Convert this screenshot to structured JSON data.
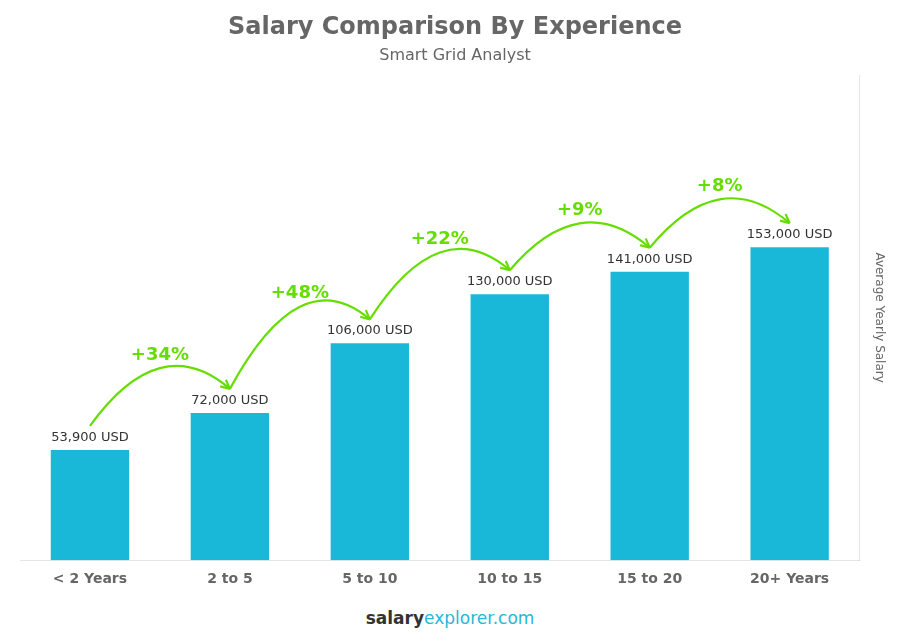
{
  "chart_data": {
    "type": "bar",
    "title": "Salary Comparison By Experience",
    "subtitle": "Smart Grid Analyst",
    "categories": [
      "< 2 Years",
      "2 to 5",
      "5 to 10",
      "10 to 15",
      "15 to 20",
      "20+ Years"
    ],
    "values": [
      53900,
      72000,
      106000,
      130000,
      141000,
      153000
    ],
    "value_labels": [
      "53,900 USD",
      "72,000 USD",
      "106,000 USD",
      "130,000 USD",
      "141,000 USD",
      "153,000 USD"
    ],
    "data_labels": true,
    "color": "#1ab8d8",
    "y_label": "Average Yearly Salary",
    "ylim": [
      0,
      237150
    ],
    "tick_labels": "x",
    "grid": false,
    "annotations": [
      {
        "text": "+34%",
        "from": "< 2 Years",
        "to": "2 to 5",
        "color": "#66dd00"
      },
      {
        "text": "+48%",
        "from": "2 to 5",
        "to": "5 to 10",
        "color": "#66dd00"
      },
      {
        "text": "+22%",
        "from": "5 to 10",
        "to": "10 to 15",
        "color": "#66dd00"
      },
      {
        "text": "+9%",
        "from": "10 to 15",
        "to": "15 to 20",
        "color": "#66dd00"
      },
      {
        "text": "+8%",
        "from": "15 to 20",
        "to": "20+ Years",
        "color": "#66dd00"
      }
    ],
    "footer": [
      "salary",
      "explorer.com"
    ]
  }
}
